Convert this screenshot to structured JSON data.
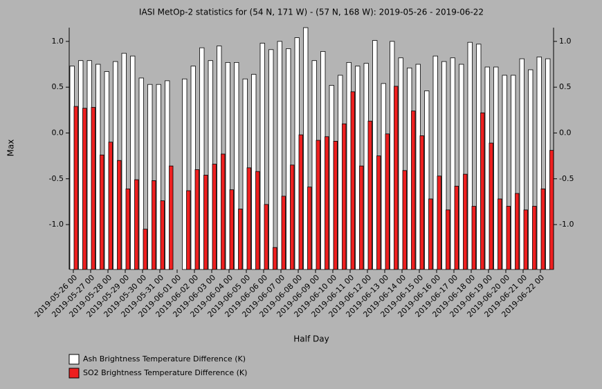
{
  "chart_data": {
    "type": "bar",
    "title": "IASI MetOp-2 statistics for (54 N, 171 W) - (57 N, 168 W): 2019-05-26 - 2019-06-22",
    "x_label": "Half Day",
    "y_label": "Max",
    "categories": [
      "2019-05-26 00",
      null,
      "2019-05-27 00",
      null,
      "2019-05-28 00",
      null,
      "2019-05-29 00",
      null,
      "2019-05-30 00",
      null,
      "2019-05-31 00",
      null,
      "2019-06-01 00",
      null,
      "2019-06-02 00",
      null,
      "2019-06-03 00",
      null,
      "2019-06-04 00",
      null,
      "2019-06-05 00",
      null,
      "2019-06-06 00",
      null,
      "2019-06-07 00",
      null,
      "2019-06-08 00",
      null,
      "2019-06-09 00",
      null,
      "2019-06-10 00",
      null,
      "2019-06-11 00",
      null,
      "2019-06-12 00",
      null,
      "2019-06-13 00",
      null,
      "2019-06-14 00",
      null,
      "2019-06-15 00",
      null,
      "2019-06-16 00",
      null,
      "2019-06-17 00",
      null,
      "2019-06-18 00",
      null,
      "2019-06-19 00",
      null,
      "2019-06-20 00",
      null,
      "2019-06-21 00",
      null,
      "2019-06-22 00",
      null
    ],
    "series": [
      {
        "name": "Ash Brightness Temperature Difference (K)",
        "color": "#ffffff",
        "values": [
          0.73,
          0.79,
          0.79,
          0.75,
          0.67,
          0.78,
          0.87,
          0.84,
          0.6,
          0.53,
          0.53,
          0.57,
          null,
          0.59,
          0.73,
          0.93,
          0.79,
          0.95,
          0.77,
          0.77,
          0.59,
          0.64,
          0.98,
          0.91,
          1.0,
          0.92,
          1.04,
          1.15,
          0.79,
          0.89,
          0.52,
          0.63,
          0.77,
          0.73,
          0.76,
          1.01,
          0.54,
          1.0,
          0.82,
          0.71,
          0.75,
          0.46,
          0.84,
          0.78,
          0.82,
          0.75,
          0.99,
          0.97,
          0.72,
          0.72,
          0.63,
          0.63,
          0.81,
          0.69,
          0.83,
          0.81
        ]
      },
      {
        "name": "SO2 Brightness Temperature Difference (K)",
        "color": "#ee2020",
        "values": [
          0.29,
          0.27,
          0.28,
          -0.24,
          -0.1,
          -0.3,
          -0.61,
          -0.51,
          -1.05,
          -0.52,
          -0.74,
          -0.36,
          null,
          -0.63,
          -0.4,
          -0.46,
          -0.34,
          -0.23,
          -0.62,
          -0.83,
          -0.38,
          -0.42,
          -0.78,
          -1.25,
          -0.69,
          -0.35,
          -0.02,
          -0.59,
          -0.08,
          -0.04,
          -0.09,
          0.1,
          0.45,
          -0.36,
          0.13,
          -0.25,
          -0.01,
          0.51,
          -0.41,
          0.24,
          -0.03,
          -0.72,
          -0.47,
          -0.84,
          -0.58,
          -0.45,
          -0.8,
          0.22,
          -0.11,
          -0.72,
          -0.8,
          -0.66,
          -0.84,
          -0.8,
          -0.61,
          -0.19
        ]
      }
    ],
    "ylim": [
      -1.49,
      1.15
    ],
    "yticks": [
      {
        "value": 1,
        "label": "1.0"
      },
      0.5,
      {
        "value": 0,
        "label": "0.0"
      },
      -0.5,
      {
        "value": -1,
        "label": "-1.0"
      }
    ]
  }
}
